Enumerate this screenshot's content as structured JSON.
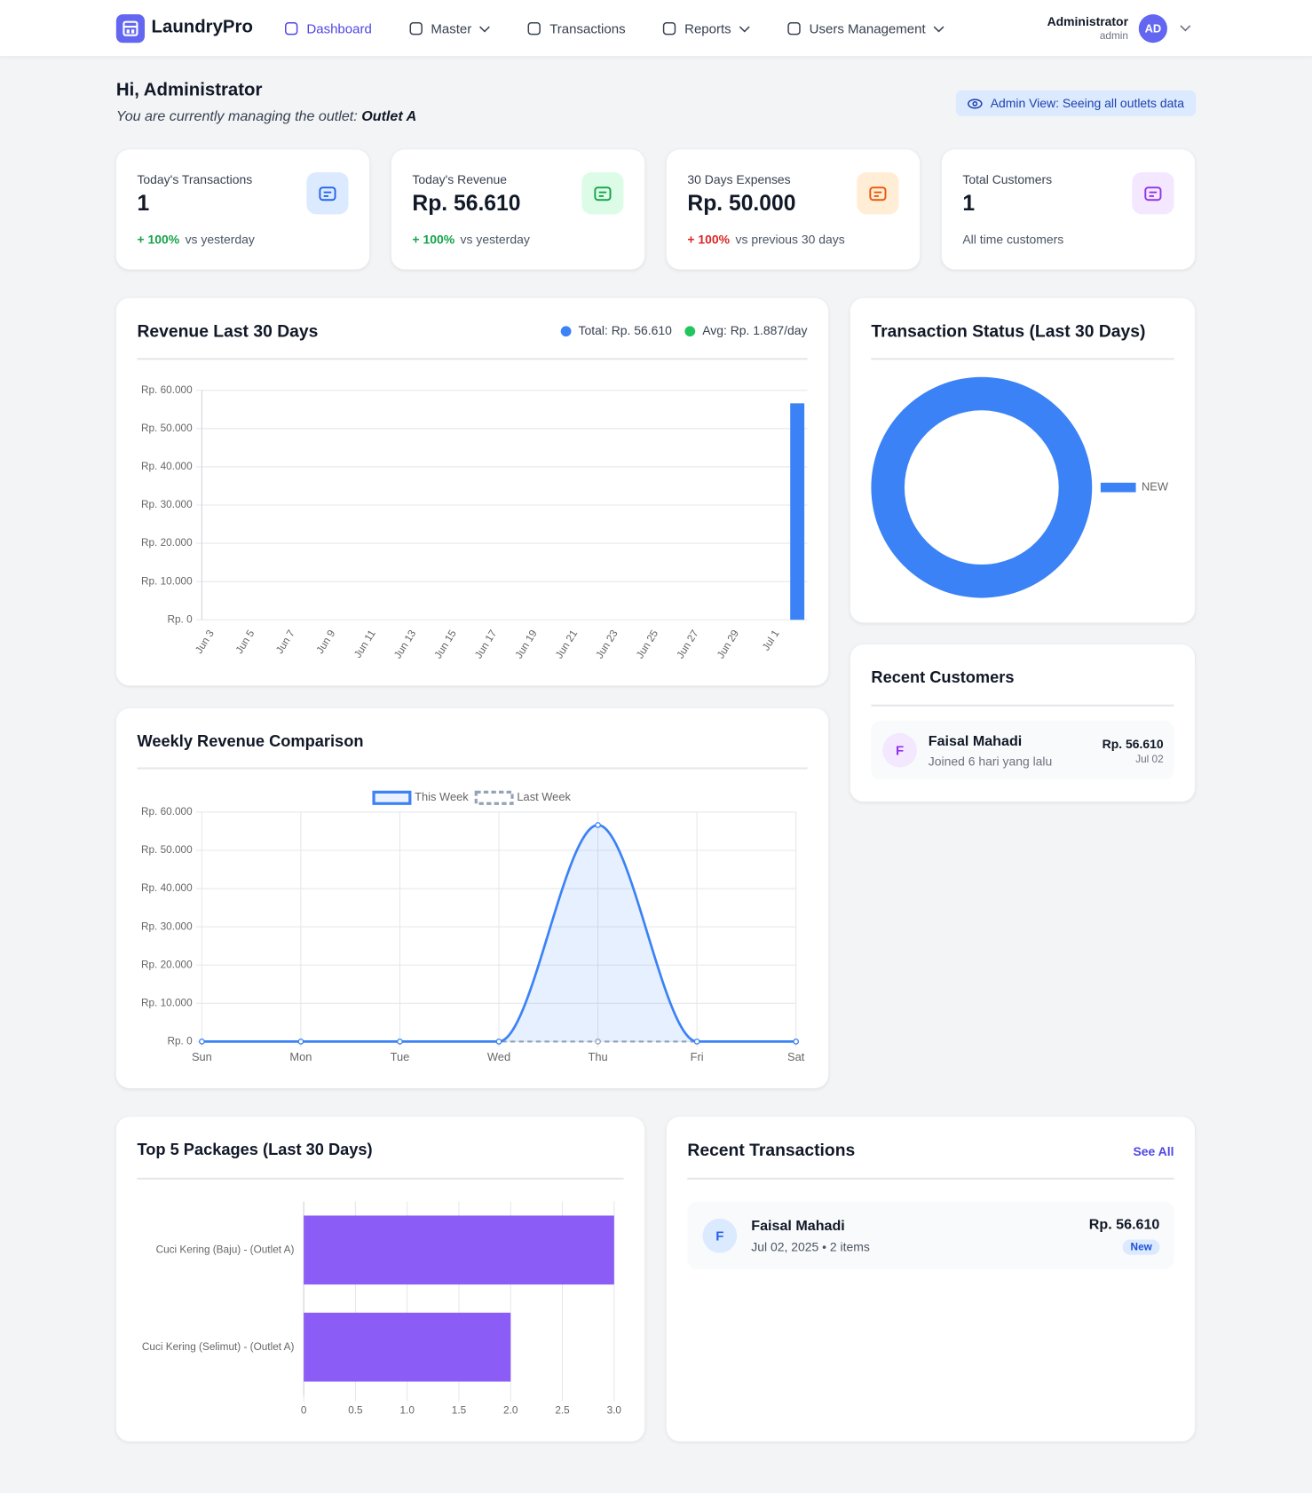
{
  "nav": {
    "brand": "LaundryPro",
    "items": [
      {
        "label": "Dashboard",
        "active": true
      },
      {
        "label": "Master",
        "dropdown": true
      },
      {
        "label": "Transactions"
      },
      {
        "label": "Reports",
        "dropdown": true
      },
      {
        "label": "Users Management",
        "dropdown": true
      }
    ],
    "user": {
      "name": "Administrator",
      "role": "admin",
      "initials": "AD"
    }
  },
  "greeting": {
    "title": "Hi, Administrator",
    "subtitle": "You are currently managing the outlet:",
    "outlet": "Outlet A",
    "badge": "Admin View: Seeing all outlets data"
  },
  "stats": [
    {
      "label": "Today's Transactions",
      "value": "1",
      "change": "+ 100%",
      "change_color": "#16a34a",
      "note": "vs yesterday",
      "icon_bg": "#dbeafe",
      "icon_color": "#2563eb"
    },
    {
      "label": "Today's Revenue",
      "value": "Rp. 56.610",
      "change": "+ 100%",
      "change_color": "#16a34a",
      "note": "vs yesterday",
      "icon_bg": "#dcfce7",
      "icon_color": "#16a34a"
    },
    {
      "label": "30 Days Expenses",
      "value": "Rp. 50.000",
      "change": "+ 100%",
      "change_color": "#dc2626",
      "note": "vs previous 30 days",
      "icon_bg": "#ffedd5",
      "icon_color": "#ea580c"
    },
    {
      "label": "Total Customers",
      "value": "1",
      "note": "All time customers",
      "icon_bg": "#f3e8ff",
      "icon_color": "#9333ea"
    }
  ],
  "chart_data": [
    {
      "type": "bar",
      "title": "Revenue Last 30 Days",
      "legend": [
        {
          "label": "Total: Rp. 56.610",
          "color": "#3b82f6"
        },
        {
          "label": "Avg: Rp. 1.887/day",
          "color": "#22c55e"
        }
      ],
      "categories": [
        "Jun 3",
        null,
        "Jun 5",
        null,
        "Jun 7",
        null,
        "Jun 9",
        null,
        "Jun 11",
        null,
        "Jun 13",
        null,
        "Jun 15",
        null,
        "Jun 17",
        null,
        "Jun 19",
        null,
        "Jun 21",
        null,
        "Jun 23",
        null,
        "Jun 25",
        null,
        "Jun 27",
        null,
        "Jun 29",
        null,
        "Jul 1",
        null
      ],
      "values": [
        0,
        0,
        0,
        0,
        0,
        0,
        0,
        0,
        0,
        0,
        0,
        0,
        0,
        0,
        0,
        0,
        0,
        0,
        0,
        0,
        0,
        0,
        0,
        0,
        0,
        0,
        0,
        0,
        0,
        56610
      ],
      "color": "#3b82f6",
      "ylim": [
        0,
        60000
      ],
      "yticks": [
        {
          "value": 0,
          "label": "Rp. 0"
        },
        {
          "value": 10000,
          "label": "Rp. 10.000"
        },
        {
          "value": 20000,
          "label": "Rp. 20.000"
        },
        {
          "value": 30000,
          "label": "Rp. 30.000"
        },
        {
          "value": 40000,
          "label": "Rp. 40.000"
        },
        {
          "value": 50000,
          "label": "Rp. 50.000"
        },
        {
          "value": 60000,
          "label": "Rp. 60.000"
        }
      ],
      "grid": true
    },
    {
      "type": "doughnut",
      "title": "Transaction Status (Last 30 Days)",
      "categories": [
        "NEW"
      ],
      "values": [
        1
      ],
      "colors": [
        "#3b82f6"
      ]
    },
    {
      "type": "line",
      "title": "Weekly Revenue Comparison",
      "categories": [
        "Sun",
        "Mon",
        "Tue",
        "Wed",
        "Thu",
        "Fri",
        "Sat"
      ],
      "series": [
        {
          "name": "This Week",
          "color": "#3b82f6",
          "fill": true,
          "dashed": false,
          "values": [
            0,
            0,
            0,
            0,
            56610,
            0,
            0
          ]
        },
        {
          "name": "Last Week",
          "color": "#94a3b8",
          "fill": false,
          "dashed": true,
          "values": [
            0,
            0,
            0,
            0,
            0,
            0,
            0
          ]
        }
      ],
      "ylim": [
        0,
        60000
      ],
      "yticks": [
        {
          "value": 0,
          "label": "Rp. 0"
        },
        {
          "value": 10000,
          "label": "Rp. 10.000"
        },
        {
          "value": 20000,
          "label": "Rp. 20.000"
        },
        {
          "value": 30000,
          "label": "Rp. 30.000"
        },
        {
          "value": 40000,
          "label": "Rp. 40.000"
        },
        {
          "value": 50000,
          "label": "Rp. 50.000"
        },
        {
          "value": 60000,
          "label": "Rp. 60.000"
        }
      ],
      "grid": true
    },
    {
      "type": "bar",
      "horizontal": true,
      "title": "Top 5 Packages (Last 30 Days)",
      "categories": [
        "Cuci Kering (Baju) - (Outlet A)",
        "Cuci Kering (Selimut) - (Outlet A)"
      ],
      "values": [
        3,
        2
      ],
      "color": "#8b5cf6",
      "xlim": [
        0,
        3
      ],
      "xticks": [
        0,
        0.5,
        {
          "value": 1,
          "label": "1.0"
        },
        1.5,
        {
          "value": 2,
          "label": "2.0"
        },
        2.5,
        {
          "value": 3,
          "label": "3.0"
        }
      ],
      "grid": true
    }
  ],
  "recent_customers": {
    "title": "Recent Customers",
    "items": [
      {
        "initial": "F",
        "name": "Faisal Mahadi",
        "joined": "Joined 6 hari yang lalu",
        "amount": "Rp. 56.610",
        "date": "Jul 02"
      }
    ]
  },
  "recent_transactions": {
    "title": "Recent Transactions",
    "link": "See All",
    "items": [
      {
        "initial": "F",
        "name": "Faisal Mahadi",
        "detail": "Jul 02, 2025 • 2 items",
        "amount": "Rp. 56.610",
        "status": "New"
      }
    ]
  }
}
